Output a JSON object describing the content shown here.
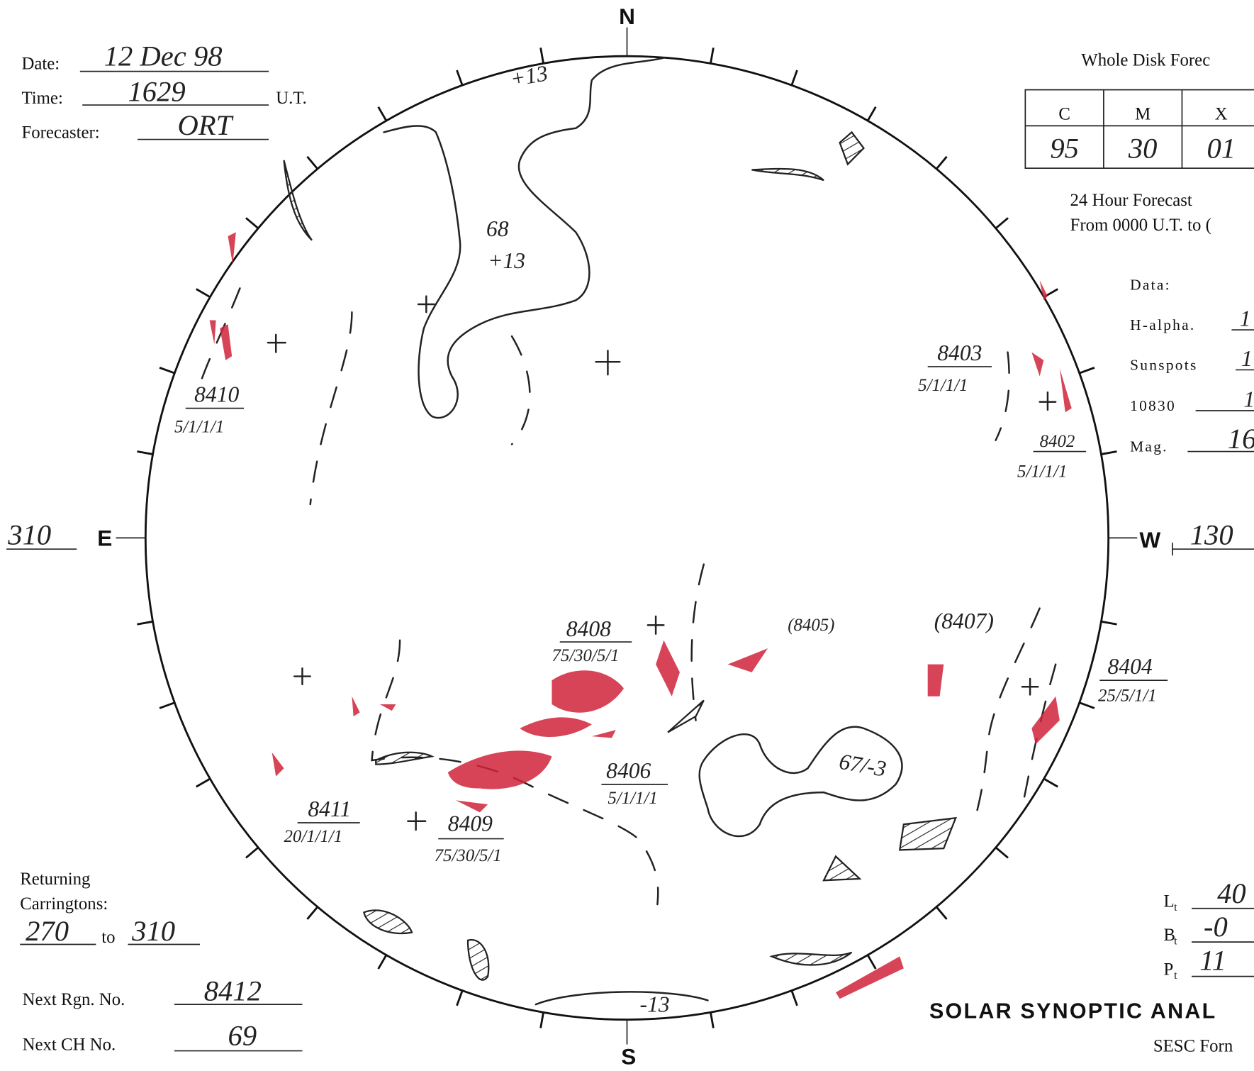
{
  "header": {
    "date_label": "Date:",
    "date": "12 Dec 98",
    "time_label": "Time:",
    "time": "1629",
    "time_unit": "U.T.",
    "forecaster_label": "Forecaster:",
    "forecaster": "ORT"
  },
  "forecast": {
    "title": "Whole Disk Forec",
    "table": {
      "headers": [
        "C",
        "M",
        "X"
      ],
      "values": [
        "95",
        "30",
        "01"
      ]
    },
    "period_line1": "24 Hour Forecast",
    "period_line2": "From 0000 U.T. to ("
  },
  "data_fields": {
    "label": "Data:",
    "rows": [
      {
        "label": "H-alpha.",
        "value": "1"
      },
      {
        "label": "Sunspots",
        "value": "1"
      },
      {
        "label": "10830",
        "value": "1"
      },
      {
        "label": "Mag.",
        "value": "16"
      }
    ]
  },
  "compass": {
    "north": "N",
    "south": "S",
    "east": "E",
    "west": "W",
    "east_longitude": "310",
    "west_longitude": "130"
  },
  "disk_annotations": [
    {
      "lines": [
        "+13"
      ]
    },
    {
      "lines": [
        "68",
        "+13"
      ]
    },
    {
      "lines": [
        "8403",
        "5/1/1/1"
      ]
    },
    {
      "lines": [
        "8410",
        "5/1/1/1"
      ]
    },
    {
      "lines": [
        "8402",
        "5/1/1/1"
      ]
    },
    {
      "lines": [
        "8408",
        "75/30/5/1"
      ]
    },
    {
      "lines": [
        "(8405)"
      ]
    },
    {
      "lines": [
        "(8407)"
      ]
    },
    {
      "lines": [
        "8404",
        "25/5/1/1"
      ]
    },
    {
      "lines": [
        "8406",
        "5/1/1/1"
      ]
    },
    {
      "lines": [
        "67/-3"
      ]
    },
    {
      "lines": [
        "8411",
        "20/1/1/1"
      ]
    },
    {
      "lines": [
        "8409",
        "75/30/5/1"
      ]
    },
    {
      "lines": [
        "-13"
      ]
    }
  ],
  "returning": {
    "label_line1": "Returning",
    "label_line2": "Carringtons:",
    "from": "270",
    "to_word": "to",
    "to": "310"
  },
  "next_region": {
    "label": "Next Rgn. No.",
    "value": "8412"
  },
  "next_ch": {
    "label": "Next CH No.",
    "value": "69"
  },
  "orientation": [
    {
      "symbol": "L",
      "subscript": "t",
      "value": "40"
    },
    {
      "symbol": "B",
      "subscript": "t",
      "value": "-0"
    },
    {
      "symbol": "P",
      "subscript": "t",
      "value": "11"
    }
  ],
  "title": "SOLAR SYNOPTIC ANAL",
  "form": "SESC Forn"
}
